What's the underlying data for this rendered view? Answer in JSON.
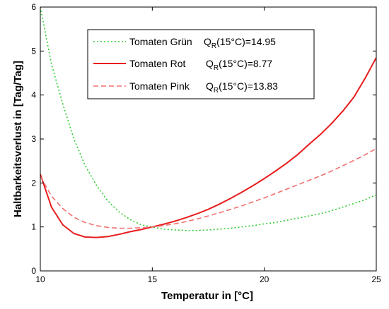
{
  "chart_data": {
    "type": "line",
    "xlabel": "Temperatur in [°C]",
    "ylabel": "Haltbarkeitsverlust in [Tag/Tag]",
    "xlim": [
      10,
      25
    ],
    "ylim": [
      0,
      6
    ],
    "xticks": [
      "10",
      "15",
      "20",
      "25"
    ],
    "yticks": [
      "0",
      "1",
      "2",
      "3",
      "4",
      "5",
      "6"
    ],
    "grid": false,
    "legend_position": "top-right",
    "series": [
      {
        "name": "Tomaten Grün",
        "q_label": "Q",
        "q_sub": "R",
        "q_value": "(15°C)=14.95",
        "color": "#2ecc2e",
        "style": "dotted",
        "x": [
          10,
          10.5,
          11,
          11.5,
          12,
          12.5,
          13,
          13.5,
          14,
          14.5,
          15,
          15.5,
          16,
          16.5,
          17,
          17.5,
          18,
          18.5,
          19,
          19.5,
          20,
          20.5,
          21,
          21.5,
          22,
          22.5,
          23,
          23.5,
          24,
          24.5,
          25
        ],
        "y": [
          6.0,
          4.7,
          3.8,
          3.0,
          2.4,
          1.95,
          1.6,
          1.35,
          1.17,
          1.05,
          1.0,
          0.95,
          0.93,
          0.92,
          0.92,
          0.93,
          0.95,
          0.97,
          1.0,
          1.03,
          1.07,
          1.1,
          1.15,
          1.2,
          1.25,
          1.3,
          1.37,
          1.45,
          1.53,
          1.62,
          1.73
        ]
      },
      {
        "name": "Tomaten Rot",
        "q_label": "Q",
        "q_sub": "R",
        "q_value": "(15°C)=8.77",
        "color": "#e81c1c",
        "style": "solid",
        "x": [
          10,
          10.5,
          11,
          11.5,
          12,
          12.5,
          13,
          13.5,
          14,
          14.5,
          15,
          15.5,
          16,
          16.5,
          17,
          17.5,
          18,
          18.5,
          19,
          19.5,
          20,
          20.5,
          21,
          21.5,
          22,
          22.5,
          23,
          23.5,
          24,
          24.5,
          25
        ],
        "y": [
          2.2,
          1.45,
          1.05,
          0.85,
          0.77,
          0.76,
          0.78,
          0.83,
          0.89,
          0.94,
          1.0,
          1.06,
          1.13,
          1.21,
          1.3,
          1.4,
          1.52,
          1.65,
          1.79,
          1.94,
          2.1,
          2.27,
          2.45,
          2.65,
          2.88,
          3.1,
          3.35,
          3.63,
          3.95,
          4.38,
          4.85
        ]
      },
      {
        "name": "Tomaten Pink",
        "q_label": "Q",
        "q_sub": "R",
        "q_value": "(15°C)=13.83",
        "color": "#f07070",
        "style": "dashed",
        "x": [
          10,
          10.5,
          11,
          11.5,
          12,
          12.5,
          13,
          13.5,
          14,
          14.5,
          15,
          15.5,
          16,
          16.5,
          17,
          17.5,
          18,
          18.5,
          19,
          19.5,
          20,
          20.5,
          21,
          21.5,
          22,
          22.5,
          23,
          23.5,
          24,
          24.5,
          25
        ],
        "y": [
          2.15,
          1.7,
          1.42,
          1.22,
          1.1,
          1.03,
          0.99,
          0.97,
          0.97,
          0.98,
          1.0,
          1.03,
          1.07,
          1.12,
          1.18,
          1.25,
          1.32,
          1.4,
          1.48,
          1.57,
          1.66,
          1.76,
          1.86,
          1.96,
          2.06,
          2.16,
          2.27,
          2.39,
          2.51,
          2.64,
          2.78
        ]
      }
    ]
  }
}
